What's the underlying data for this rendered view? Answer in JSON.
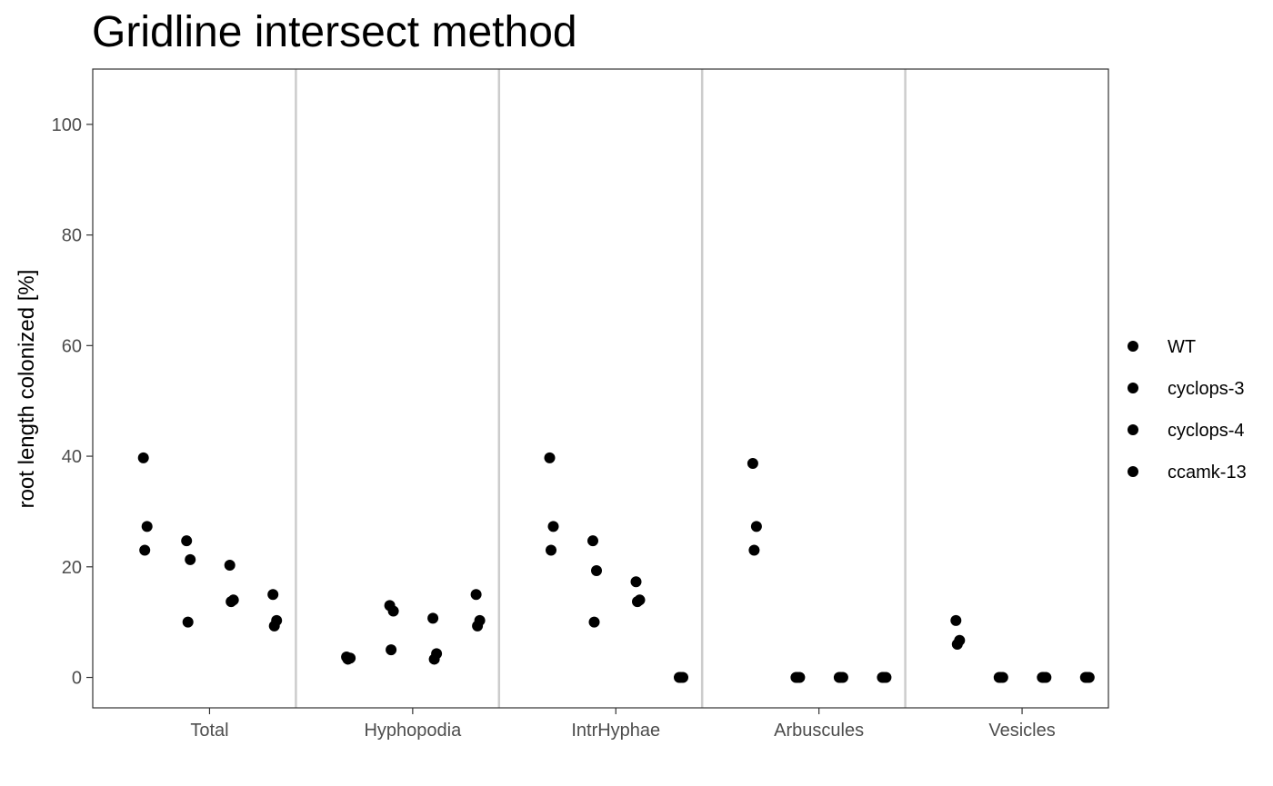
{
  "chart_data": {
    "type": "scatter",
    "title": "Gridline intersect method",
    "xlabel": "",
    "ylabel": "root length colonized [%]",
    "ylim": [
      -5.5,
      110
    ],
    "yticks": [
      0,
      20,
      40,
      60,
      80,
      100
    ],
    "categories": [
      "Total",
      "Hyphopodia",
      "IntrHyphae",
      "Arbuscules",
      "Vesicles"
    ],
    "legend": {
      "position": "right",
      "entries": [
        "WT",
        "cyclops-3",
        "cyclops-4",
        "ccamk-13"
      ]
    },
    "point_color": "#000000",
    "series": [
      {
        "name": "WT",
        "values": [
          [
            23,
            27.3,
            39.7
          ],
          [
            3.3,
            3.5,
            3.7
          ],
          [
            23,
            27.3,
            39.7
          ],
          [
            23,
            27.3,
            38.7
          ],
          [
            6,
            6.7,
            10.3
          ]
        ]
      },
      {
        "name": "cyclops-3",
        "values": [
          [
            10,
            21.3,
            24.7
          ],
          [
            5,
            12,
            13
          ],
          [
            10,
            19.3,
            24.7
          ],
          [
            0,
            0,
            0
          ],
          [
            0,
            0,
            0
          ]
        ]
      },
      {
        "name": "cyclops-4",
        "values": [
          [
            13.7,
            14,
            20.3
          ],
          [
            3.3,
            4.3,
            10.7
          ],
          [
            13.7,
            14,
            17.3
          ],
          [
            0,
            0,
            0
          ],
          [
            0,
            0,
            0
          ]
        ]
      },
      {
        "name": "ccamk-13",
        "values": [
          [
            9.3,
            10.3,
            15
          ],
          [
            9.3,
            10.3,
            15
          ],
          [
            0,
            0,
            0
          ],
          [
            0,
            0,
            0
          ],
          [
            0,
            0,
            0
          ]
        ]
      }
    ]
  }
}
